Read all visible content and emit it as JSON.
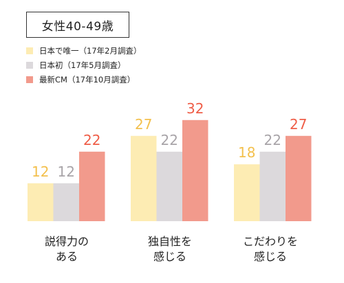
{
  "colors": {
    "series": [
      "#fdecb3",
      "#dcd9dc",
      "#f29a8c"
    ],
    "value_label": [
      "#f3c04d",
      "#a8a4a8",
      "#ef5d47"
    ]
  },
  "chart_data": {
    "type": "bar",
    "title": "女性40-49歳",
    "categories": [
      "説得力のある",
      "独自性を感じる",
      "こだわりを感じる"
    ],
    "category_lines": [
      [
        "説得力の",
        "ある"
      ],
      [
        "独自性を",
        "感じる"
      ],
      [
        "こだわりを",
        "感じる"
      ]
    ],
    "series": [
      {
        "name": "日本で唯一（17年2月調査）",
        "values": [
          12,
          27,
          18
        ]
      },
      {
        "name": "日本初（17年5月調査）",
        "values": [
          12,
          22,
          22
        ]
      },
      {
        "name": "最新CM（17年10月調査）",
        "values": [
          22,
          32,
          27
        ]
      }
    ],
    "ylim": [
      0,
      35
    ],
    "grid": false,
    "legend_position": "top-left"
  }
}
